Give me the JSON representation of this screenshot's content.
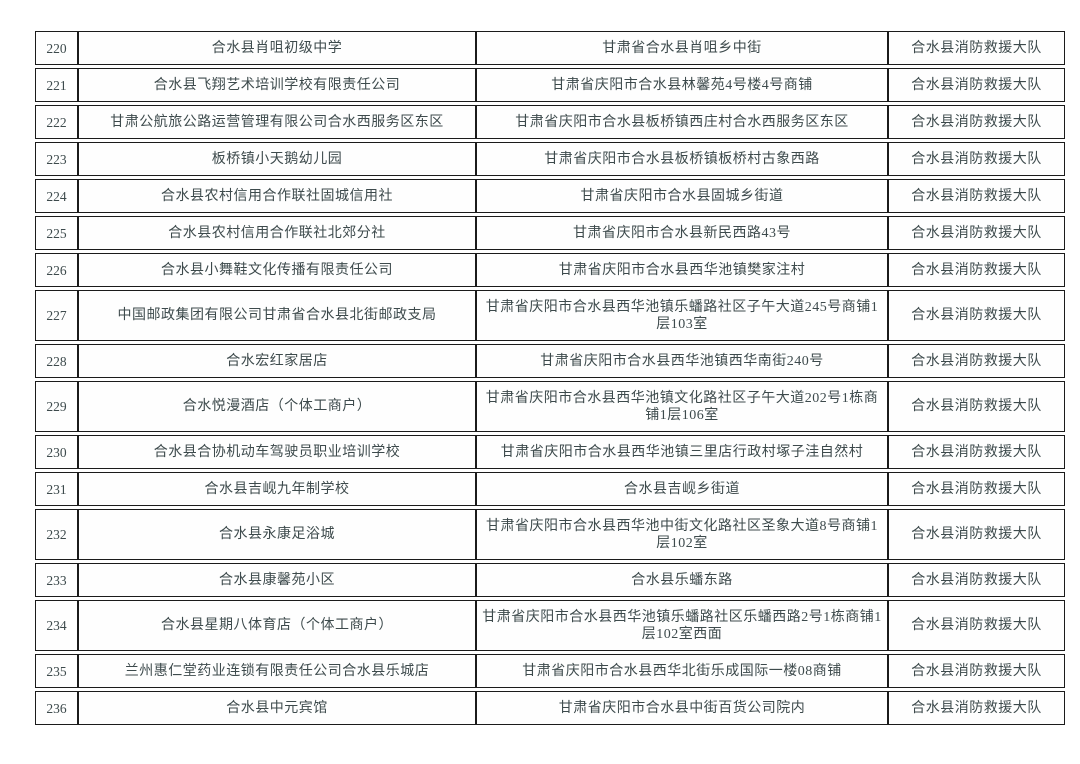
{
  "page": {
    "background_color": "#ffffff",
    "text_color": "#3d4a4c",
    "border_color": "#1b1b1b"
  },
  "table": {
    "responsible_unit_all_rows": "合水县消防救援大队",
    "rows": [
      {
        "no": "220",
        "name": "合水县肖咀初级中学",
        "address": "甘肃省合水县肖咀乡中街",
        "unit": "合水县消防救援大队"
      },
      {
        "no": "221",
        "name": "合水县飞翔艺术培训学校有限责任公司",
        "address": "甘肃省庆阳市合水县林馨苑4号楼4号商铺",
        "unit": "合水县消防救援大队"
      },
      {
        "no": "222",
        "name": "甘肃公航旅公路运营管理有限公司合水西服务区东区",
        "address": "甘肃省庆阳市合水县板桥镇西庄村合水西服务区东区",
        "unit": "合水县消防救援大队"
      },
      {
        "no": "223",
        "name": "板桥镇小天鹅幼儿园",
        "address": "甘肃省庆阳市合水县板桥镇板桥村古象西路",
        "unit": "合水县消防救援大队"
      },
      {
        "no": "224",
        "name": "合水县农村信用合作联社固城信用社",
        "address": "甘肃省庆阳市合水县固城乡街道",
        "unit": "合水县消防救援大队"
      },
      {
        "no": "225",
        "name": "合水县农村信用合作联社北郊分社",
        "address": "甘肃省庆阳市合水县新民西路43号",
        "unit": "合水县消防救援大队"
      },
      {
        "no": "226",
        "name": "合水县小舞鞋文化传播有限责任公司",
        "address": "甘肃省庆阳市合水县西华池镇樊家注村",
        "unit": "合水县消防救援大队"
      },
      {
        "no": "227",
        "name": "中国邮政集团有限公司甘肃省合水县北街邮政支局",
        "address": "甘肃省庆阳市合水县西华池镇乐蟠路社区子午大道245号商铺1层103室",
        "unit": "合水县消防救援大队"
      },
      {
        "no": "228",
        "name": "合水宏红家居店",
        "address": "甘肃省庆阳市合水县西华池镇西华南街240号",
        "unit": "合水县消防救援大队"
      },
      {
        "no": "229",
        "name": "合水悦漫酒店（个体工商户）",
        "address": "甘肃省庆阳市合水县西华池镇文化路社区子午大道202号1栋商铺1层106室",
        "unit": "合水县消防救援大队"
      },
      {
        "no": "230",
        "name": "合水县合协机动车驾驶员职业培训学校",
        "address": "甘肃省庆阳市合水县西华池镇三里店行政村塚子洼自然村",
        "unit": "合水县消防救援大队"
      },
      {
        "no": "231",
        "name": "合水县吉岘九年制学校",
        "address": "合水县吉岘乡街道",
        "unit": "合水县消防救援大队"
      },
      {
        "no": "232",
        "name": "合水县永康足浴城",
        "address": "甘肃省庆阳市合水县西华池中街文化路社区圣象大道8号商铺1层102室",
        "unit": "合水县消防救援大队"
      },
      {
        "no": "233",
        "name": "合水县康馨苑小区",
        "address": "合水县乐蟠东路",
        "unit": "合水县消防救援大队"
      },
      {
        "no": "234",
        "name": "合水县星期八体育店（个体工商户）",
        "address": "甘肃省庆阳市合水县西华池镇乐蟠路社区乐蟠西路2号1栋商铺1层102室西面",
        "unit": "合水县消防救援大队"
      },
      {
        "no": "235",
        "name": "兰州惠仁堂药业连锁有限责任公司合水县乐城店",
        "address": "甘肃省庆阳市合水县西华北街乐成国际一楼08商铺",
        "unit": "合水县消防救援大队"
      },
      {
        "no": "236",
        "name": "合水县中元宾馆",
        "address": "甘肃省庆阳市合水县中街百货公司院内",
        "unit": "合水县消防救援大队"
      }
    ]
  }
}
